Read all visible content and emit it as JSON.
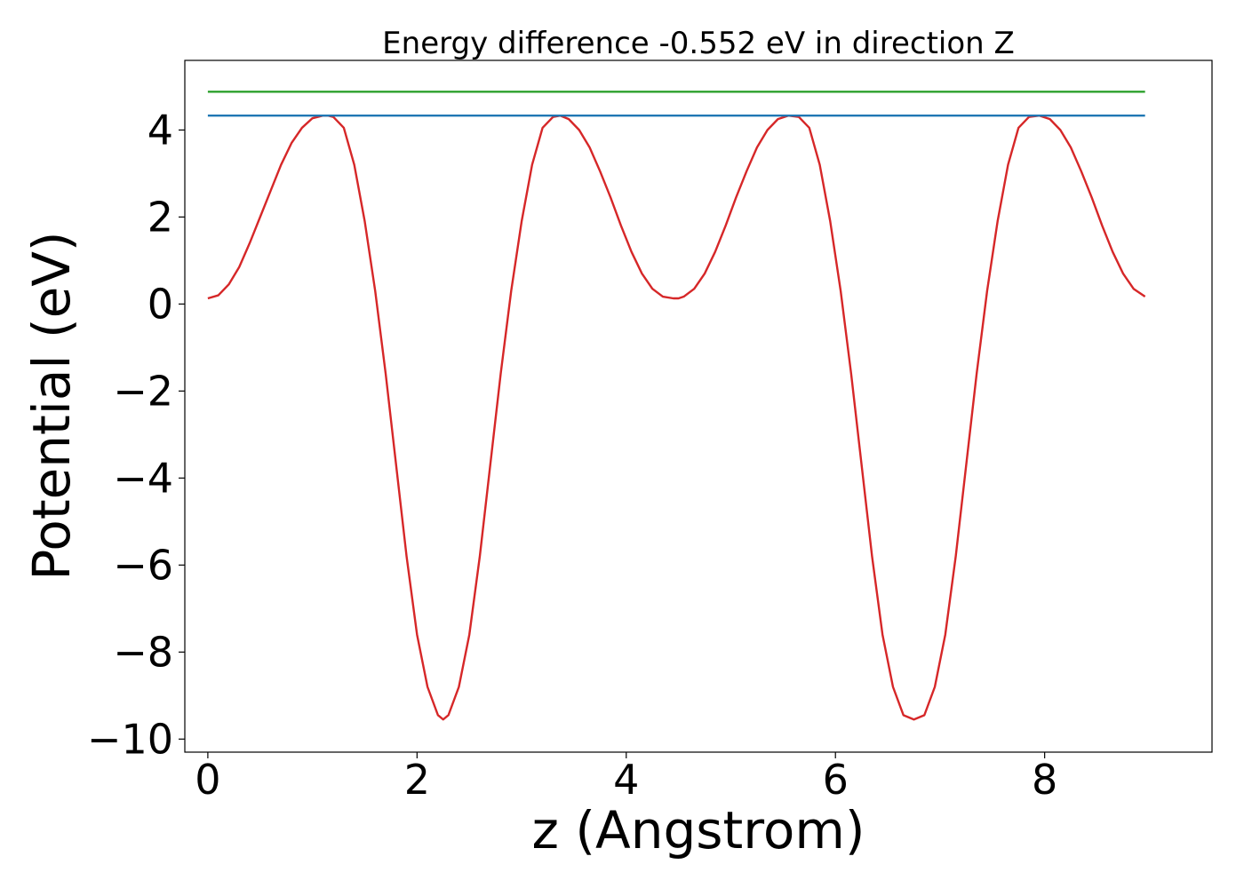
{
  "chart_data": {
    "type": "line",
    "title": "Energy difference -0.552 eV in direction Z",
    "xlabel": "z (Angstrom)",
    "ylabel": "Potential (eV)",
    "xlim": [
      -0.22,
      9.6
    ],
    "ylim": [
      -10.3,
      5.6
    ],
    "x_ticks": [
      0,
      2,
      4,
      6,
      8
    ],
    "y_ticks": [
      4,
      2,
      0,
      -2,
      -4,
      -6,
      -8,
      -10
    ],
    "x_tick_labels": [
      "0",
      "2",
      "4",
      "6",
      "8"
    ],
    "y_tick_labels": [
      "4",
      "2",
      "0",
      "−2",
      "−4",
      "−6",
      "−8",
      "−10"
    ],
    "grid": false,
    "legend": "none",
    "series": [
      {
        "color": "#d62728",
        "x": [
          0.0,
          0.1,
          0.2,
          0.3,
          0.4,
          0.5,
          0.6,
          0.7,
          0.8,
          0.9,
          1.0,
          1.1,
          1.15,
          1.2,
          1.3,
          1.4,
          1.5,
          1.6,
          1.7,
          1.8,
          1.9,
          2.0,
          2.1,
          2.2,
          2.25,
          2.3,
          2.4,
          2.5,
          2.6,
          2.7,
          2.8,
          2.9,
          3.0,
          3.1,
          3.2,
          3.3,
          3.37,
          3.45,
          3.55,
          3.65,
          3.75,
          3.85,
          3.95,
          4.05,
          4.15,
          4.25,
          4.35,
          4.45,
          4.5,
          4.55,
          4.65,
          4.75,
          4.85,
          4.95,
          5.05,
          5.15,
          5.25,
          5.35,
          5.45,
          5.55,
          5.65,
          5.75,
          5.85,
          5.95,
          6.05,
          6.15,
          6.25,
          6.35,
          6.45,
          6.55,
          6.65,
          6.75,
          6.85,
          6.95,
          7.05,
          7.15,
          7.25,
          7.35,
          7.45,
          7.55,
          7.65,
          7.75,
          7.85,
          7.95,
          8.05,
          8.15,
          8.25,
          8.35,
          8.45,
          8.55,
          8.65,
          8.75,
          8.85,
          8.96
        ],
        "y": [
          0.13,
          0.2,
          0.45,
          0.85,
          1.4,
          2.0,
          2.6,
          3.2,
          3.7,
          4.05,
          4.27,
          4.33,
          4.33,
          4.3,
          4.05,
          3.2,
          1.9,
          0.3,
          -1.6,
          -3.7,
          -5.8,
          -7.6,
          -8.8,
          -9.45,
          -9.55,
          -9.45,
          -8.8,
          -7.6,
          -5.8,
          -3.7,
          -1.6,
          0.3,
          1.9,
          3.2,
          4.05,
          4.3,
          4.33,
          4.25,
          4.0,
          3.6,
          3.05,
          2.45,
          1.8,
          1.2,
          0.7,
          0.35,
          0.17,
          0.13,
          0.13,
          0.17,
          0.35,
          0.7,
          1.2,
          1.8,
          2.45,
          3.05,
          3.6,
          4.0,
          4.25,
          4.33,
          4.3,
          4.05,
          3.2,
          1.9,
          0.3,
          -1.6,
          -3.7,
          -5.8,
          -7.6,
          -8.8,
          -9.45,
          -9.55,
          -9.45,
          -8.8,
          -7.6,
          -5.8,
          -3.7,
          -1.6,
          0.3,
          1.9,
          3.2,
          4.05,
          4.3,
          4.33,
          4.25,
          4.0,
          3.6,
          3.05,
          2.45,
          1.8,
          1.2,
          0.7,
          0.35,
          0.17
        ]
      },
      {
        "color": "#1f77b4",
        "x": [
          0.0,
          8.96
        ],
        "y": [
          4.33,
          4.33
        ]
      },
      {
        "color": "#2ca02c",
        "x": [
          0.0,
          8.96
        ],
        "y": [
          4.88,
          4.88
        ]
      }
    ]
  }
}
